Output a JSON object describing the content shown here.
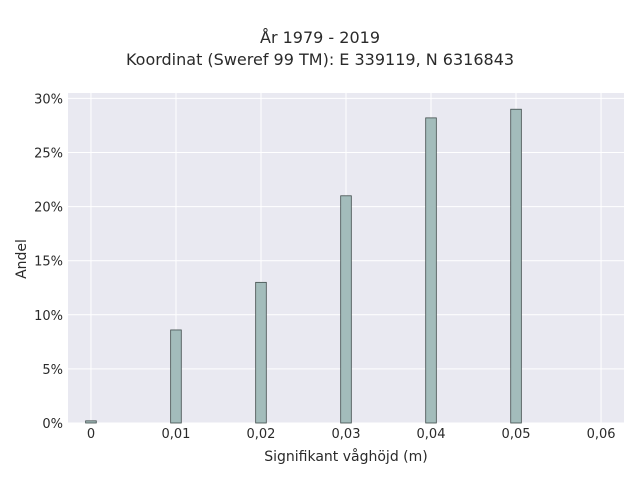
{
  "chart_data": {
    "type": "bar",
    "title": "År 1979 - 2019",
    "subtitle": "Koordinat (Sweref 99 TM): E 339119, N 6316843",
    "xlabel": "Signifikant våghöjd (m)",
    "ylabel": "Andel",
    "x": [
      0,
      0.01,
      0.02,
      0.03,
      0.04,
      0.05
    ],
    "values": [
      0.2,
      8.6,
      13.0,
      21.0,
      28.2,
      29.0
    ],
    "value_unit": "percent",
    "xlim": [
      -0.0027,
      0.0627
    ],
    "ylim": [
      0,
      30.5
    ],
    "x_ticks": [
      0,
      0.01,
      0.02,
      0.03,
      0.04,
      0.05,
      0.06
    ],
    "x_tick_labels": [
      "0",
      "0,01",
      "0,02",
      "0,03",
      "0,04",
      "0,05",
      "0,06"
    ],
    "y_ticks": [
      0,
      5,
      10,
      15,
      20,
      25,
      30
    ],
    "y_tick_labels": [
      "0%",
      "5%",
      "10%",
      "15%",
      "20%",
      "25%",
      "30%"
    ],
    "bar_width": 0.00125,
    "grid": true,
    "colors": {
      "plot_background": "#e9e9f1",
      "grid": "#ffffff",
      "bar_fill": "#a3bcbb",
      "bar_stroke": "#3e4b4a",
      "text": "#2a2a2a"
    }
  }
}
